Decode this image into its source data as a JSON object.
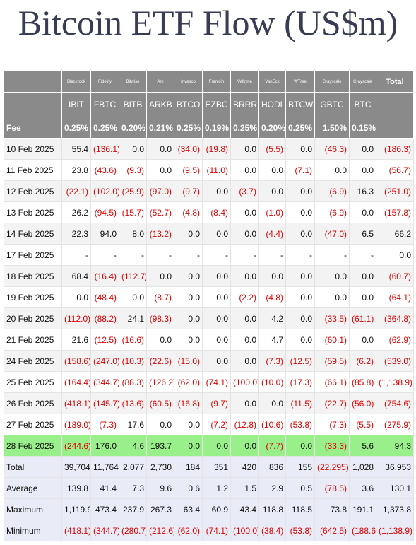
{
  "title": "Bitcoin ETF Flow (US$m)",
  "table": {
    "issuers": [
      "Blackrock",
      "Fidelity",
      "Bitwise",
      "Ark",
      "Invesco",
      "Franklin",
      "Valkyrie",
      "VanEck",
      "WTree",
      "Grayscale",
      "Grayscale",
      "Total"
    ],
    "tickers": [
      "IBIT",
      "FBTC",
      "BITB",
      "ARKB",
      "BTCO",
      "EZBC",
      "BRRR",
      "HODL",
      "BTCW",
      "GBTC",
      "BTC"
    ],
    "fee": [
      "Fee",
      "0.25%",
      "0.25%",
      "0.20%",
      "0.21%",
      "0.25%",
      "0.19%",
      "0.25%",
      "0.20%",
      "0.25%",
      "1.50%",
      "0.15%"
    ],
    "rows": [
      [
        "10 Feb 2025",
        "55.4",
        "(136.1)",
        "0.0",
        "0.0",
        "(34.0)",
        "(19.8)",
        "0.0",
        "(5.5)",
        "0.0",
        "(46.3)",
        "0.0",
        "(186.3)"
      ],
      [
        "11 Feb 2025",
        "23.8",
        "(43.6)",
        "(9.3)",
        "0.0",
        "(9.5)",
        "(11.0)",
        "0.0",
        "0.0",
        "(7.1)",
        "0.0",
        "0.0",
        "(56.7)"
      ],
      [
        "12 Feb 2025",
        "(22.1)",
        "(102.0)",
        "(25.9)",
        "(97.0)",
        "(9.7)",
        "0.0",
        "(3.7)",
        "0.0",
        "0.0",
        "(6.9)",
        "16.3",
        "(251.0)"
      ],
      [
        "13 Feb 2025",
        "26.2",
        "(94.5)",
        "(15.7)",
        "(52.7)",
        "(4.8)",
        "(8.4)",
        "0.0",
        "(1.0)",
        "0.0",
        "(6.9)",
        "0.0",
        "(157.8)"
      ],
      [
        "14 Feb 2025",
        "22.3",
        "94.0",
        "8.0",
        "(13.2)",
        "0.0",
        "0.0",
        "0.0",
        "(4.4)",
        "0.0",
        "(47.0)",
        "6.5",
        "66.2"
      ],
      [
        "17 Feb 2025",
        "-",
        "-",
        "-",
        "-",
        "-",
        "-",
        "-",
        "-",
        "-",
        "-",
        "-",
        "0.0"
      ],
      [
        "18 Feb 2025",
        "68.4",
        "(16.4)",
        "(112.7)",
        "0.0",
        "0.0",
        "0.0",
        "0.0",
        "0.0",
        "0.0",
        "0.0",
        "0.0",
        "(60.7)"
      ],
      [
        "19 Feb 2025",
        "0.0",
        "(48.4)",
        "0.0",
        "(8.7)",
        "0.0",
        "0.0",
        "(2.2)",
        "(4.8)",
        "0.0",
        "0.0",
        "0.0",
        "(64.1)"
      ],
      [
        "20 Feb 2025",
        "(112.0)",
        "(88.2)",
        "24.1",
        "(98.3)",
        "0.0",
        "0.0",
        "0.0",
        "4.2",
        "0.0",
        "(33.5)",
        "(61.1)",
        "(364.8)"
      ],
      [
        "21 Feb 2025",
        "21.6",
        "(12.5)",
        "(16.6)",
        "0.0",
        "0.0",
        "0.0",
        "0.0",
        "4.7",
        "0.0",
        "(60.1)",
        "0.0",
        "(62.9)"
      ],
      [
        "24 Feb 2025",
        "(158.6)",
        "(247.0)",
        "(10.3)",
        "(22.6)",
        "(15.0)",
        "0.0",
        "0.0",
        "(7.3)",
        "(12.5)",
        "(59.5)",
        "(6.2)",
        "(539.0)"
      ],
      [
        "25 Feb 2025",
        "(164.4)",
        "(344.7)",
        "(88.3)",
        "(126.2)",
        "(62.0)",
        "(74.1)",
        "(100.0)",
        "(10.0)",
        "(17.3)",
        "(66.1)",
        "(85.8)",
        "(1,138.9)"
      ],
      [
        "26 Feb 2025",
        "(418.1)",
        "(145.7)",
        "(13.6)",
        "(60.5)",
        "(16.8)",
        "(9.7)",
        "0.0",
        "0.0",
        "(11.5)",
        "(22.7)",
        "(56.0)",
        "(754.6)"
      ],
      [
        "27 Feb 2025",
        "(189.0)",
        "(7.3)",
        "17.6",
        "0.0",
        "0.0",
        "(7.2)",
        "(12.8)",
        "(10.6)",
        "(53.8)",
        "(7.3)",
        "(5.5)",
        "(275.9)"
      ],
      [
        "28 Feb 2025",
        "(244.6)",
        "176.0",
        "4.6",
        "193.7",
        "0.0",
        "0.0",
        "0.0",
        "(7.7)",
        "0.0",
        "(33.3)",
        "5.6",
        "94.3"
      ]
    ],
    "summary": [
      [
        "Total",
        "39,704",
        "11,764",
        "2,077",
        "2,730",
        "184",
        "351",
        "420",
        "836",
        "155",
        "(22,295)",
        "1,028",
        "36,953"
      ],
      [
        "Average",
        "139.8",
        "41.4",
        "7.3",
        "9.6",
        "0.6",
        "1.2",
        "1.5",
        "2.9",
        "0.5",
        "(78.5)",
        "3.6",
        "130.1"
      ],
      [
        "Maximum",
        "1,119.9",
        "473.4",
        "237.9",
        "267.3",
        "63.4",
        "60.9",
        "43.4",
        "118.8",
        "118.5",
        "73.8",
        "191.1",
        "1,373.8"
      ],
      [
        "Minimum",
        "(418.1)",
        "(344.7)",
        "(280.7)",
        "(212.6)",
        "(62.0)",
        "(74.1)",
        "(100.0)",
        "(38.4)",
        "(53.8)",
        "(642.5)",
        "(188.6)",
        "(1,138.9)"
      ]
    ]
  }
}
